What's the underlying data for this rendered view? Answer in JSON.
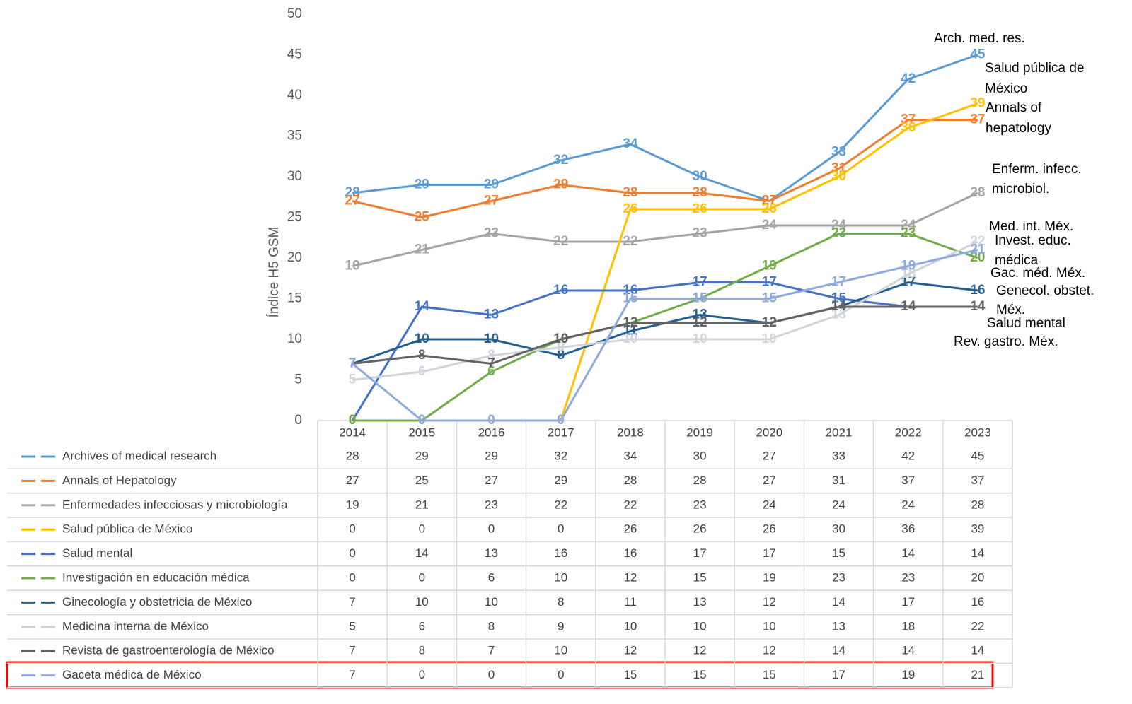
{
  "chart_data": {
    "type": "line",
    "ylabel": "Índice H5 GSM",
    "categories": [
      "2014",
      "2015",
      "2016",
      "2017",
      "2018",
      "2019",
      "2020",
      "2021",
      "2022",
      "2023"
    ],
    "ylim": [
      0,
      50
    ],
    "yticks": [
      0,
      5,
      10,
      15,
      20,
      25,
      30,
      35,
      40,
      45,
      50
    ],
    "series": [
      {
        "name": "Archives of medical research",
        "color": "#5b9bd5",
        "values": [
          28,
          29,
          29,
          32,
          34,
          30,
          27,
          33,
          42,
          45
        ]
      },
      {
        "name": "Annals of Hepatology",
        "color": "#ed7d31",
        "values": [
          27,
          25,
          27,
          29,
          28,
          28,
          27,
          31,
          37,
          37
        ]
      },
      {
        "name": "Enfermedades infecciosas y microbiología",
        "color": "#a5a5a5",
        "values": [
          19,
          21,
          23,
          22,
          22,
          23,
          24,
          24,
          24,
          28
        ]
      },
      {
        "name": "Salud pública de México",
        "color": "#ffc000",
        "values": [
          0,
          0,
          0,
          0,
          26,
          26,
          26,
          30,
          36,
          39
        ]
      },
      {
        "name": "Salud mental",
        "color": "#4472c4",
        "values": [
          0,
          14,
          13,
          16,
          16,
          17,
          17,
          15,
          14,
          14
        ]
      },
      {
        "name": "Investigación en educación médica",
        "color": "#70ad47",
        "values": [
          0,
          0,
          6,
          10,
          12,
          15,
          19,
          23,
          23,
          20
        ]
      },
      {
        "name": "Ginecología y obstetricia de México",
        "color": "#255e91",
        "values": [
          7,
          10,
          10,
          8,
          11,
          13,
          12,
          14,
          17,
          16
        ]
      },
      {
        "name": "Medicina interna de México",
        "color": "#d0d5dc",
        "values": [
          5,
          6,
          8,
          9,
          10,
          10,
          10,
          13,
          18,
          22
        ]
      },
      {
        "name": "Revista de gastroenterología de México",
        "color": "#636363",
        "values": [
          7,
          8,
          7,
          10,
          12,
          12,
          12,
          14,
          14,
          14
        ]
      },
      {
        "name": "Gaceta médica de México",
        "color": "#8faadc",
        "values": [
          7,
          0,
          0,
          0,
          15,
          15,
          15,
          17,
          19,
          21
        ]
      }
    ],
    "annotations": [
      [
        "Arch. med. res."
      ],
      [
        "Salud pública de",
        "México"
      ],
      [
        "Annals of",
        "hepatology"
      ],
      [
        "Enferm. infecc.",
        "microbiol."
      ],
      [
        "Med. int. Méx."
      ],
      [
        "Invest. educ.",
        "médica"
      ],
      [
        "Gac. méd. Méx."
      ],
      [
        "Genecol. obstet.",
        "Méx."
      ],
      [
        "Salud mental"
      ],
      [
        "Rev. gastro. Méx."
      ]
    ]
  }
}
